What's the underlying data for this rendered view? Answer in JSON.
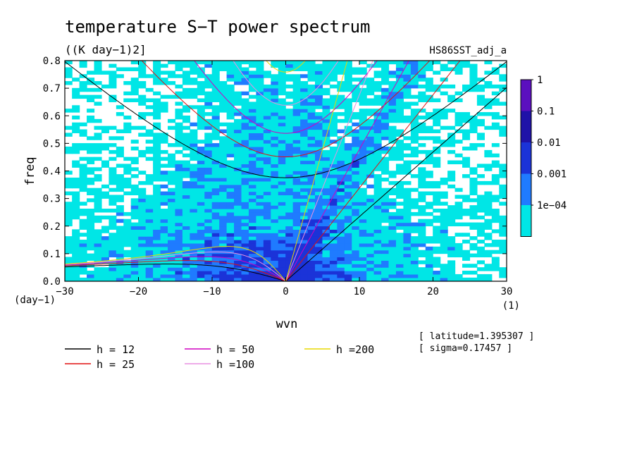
{
  "chart_data": {
    "type": "heatmap",
    "title": "temperature S−T power spectrum",
    "subtitle": "((K day−1)2]",
    "dataset_label": "HS86SST_adj_a",
    "xlabel": "wvn",
    "ylabel": "freq",
    "x_unit": "(1)",
    "y_unit": "(day−1)",
    "xlim": [
      -30,
      30
    ],
    "ylim": [
      0,
      0.8
    ],
    "x_ticks": [
      -30,
      -20,
      -10,
      0,
      10,
      20,
      30
    ],
    "x_tick_labels": [
      "−30",
      "−20",
      "−10",
      "0",
      "10",
      "20",
      "30"
    ],
    "y_ticks": [
      0,
      0.1,
      0.2,
      0.3,
      0.4,
      0.5,
      0.6,
      0.7,
      0.8
    ],
    "y_tick_labels": [
      "0.0",
      "0.1",
      "0.2",
      "0.3",
      "0.4",
      "0.5",
      "0.6",
      "0.7",
      "0.8"
    ],
    "colorbar": {
      "levels": [
        "1",
        "0.1",
        "0.01",
        "0.001",
        "1e−04"
      ],
      "colors": [
        "#5b0fbf",
        "#1f12a8",
        "#1b33d8",
        "#1f7bff",
        "#00e6e6"
      ]
    },
    "field_colors": {
      "low": "#00e6e6",
      "mid": "#1f7bff",
      "high": "#1b33d8"
    },
    "dispersion_curves": [
      {
        "name": "h = 12",
        "equivalent_depth": 12,
        "color": "#000000"
      },
      {
        "name": "h = 25",
        "equivalent_depth": 25,
        "color": "#e01010"
      },
      {
        "name": "h = 50",
        "equivalent_depth": 50,
        "color": "#d000c0"
      },
      {
        "name": "h =100",
        "equivalent_depth": 100,
        "color": "#e890e0"
      },
      {
        "name": "h =200",
        "equivalent_depth": 200,
        "color": "#e8d800"
      }
    ],
    "annotations": [
      "[ latitude=1.395307 ]",
      "[ sigma=0.17457 ]"
    ]
  }
}
